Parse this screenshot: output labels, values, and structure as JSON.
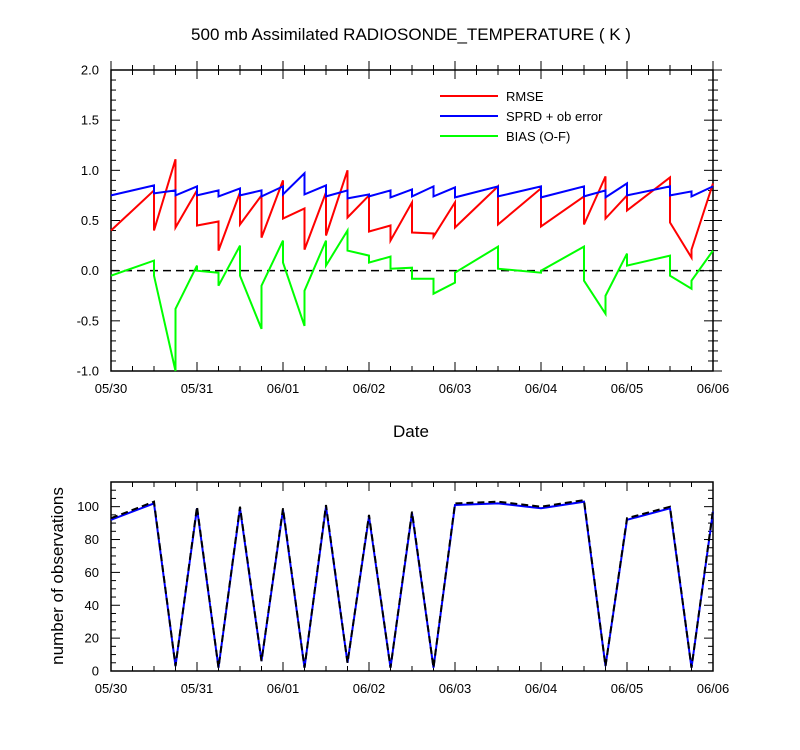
{
  "chart_data": [
    {
      "type": "line",
      "title": "500 mb Assimilated RADIOSONDE_TEMPERATURE ( K )",
      "xlabel": "Date",
      "ylabel": "",
      "x_tick_labels": [
        "05/30",
        "05/31",
        "06/01",
        "06/02",
        "06/03",
        "06/04",
        "06/05",
        "06/06"
      ],
      "xlim": [
        0,
        7
      ],
      "ylim": [
        -1.0,
        2.0
      ],
      "y_tick_labels": [
        "-1.0",
        "-0.5",
        "0.0",
        "0.5",
        "1.0",
        "1.5",
        "2.0"
      ],
      "legend_position": "top-right",
      "reference_line": {
        "y": 0,
        "style": "dashed",
        "color": "#000000"
      },
      "series": [
        {
          "name": "RMSE",
          "color": "#ff0000",
          "x": [
            0,
            0.5,
            0.5,
            0.75,
            0.75,
            1.0,
            1.0,
            1.25,
            1.25,
            1.5,
            1.5,
            1.75,
            1.75,
            2.0,
            2.0,
            2.25,
            2.25,
            2.5,
            2.5,
            2.75,
            2.75,
            3.0,
            3.0,
            3.25,
            3.25,
            3.5,
            3.5,
            3.75,
            3.75,
            4.0,
            4.0,
            4.5,
            4.5,
            5.0,
            5.0,
            5.5,
            5.5,
            5.75,
            5.75,
            6.0,
            6.0,
            6.5,
            6.5,
            6.75,
            6.75,
            7.0
          ],
          "y": [
            0.4,
            0.8,
            0.4,
            1.11,
            0.43,
            0.8,
            0.45,
            0.49,
            0.2,
            0.78,
            0.46,
            0.75,
            0.33,
            0.9,
            0.52,
            0.62,
            0.21,
            0.78,
            0.35,
            1.0,
            0.53,
            0.75,
            0.39,
            0.45,
            0.3,
            0.68,
            0.38,
            0.37,
            0.34,
            0.68,
            0.43,
            0.84,
            0.46,
            0.82,
            0.44,
            0.74,
            0.46,
            0.94,
            0.52,
            0.75,
            0.6,
            0.93,
            0.48,
            0.13,
            0.21,
            0.87
          ]
        },
        {
          "name": "SPRD + ob error",
          "color": "#0000ff",
          "x": [
            0,
            0.5,
            0.5,
            0.75,
            0.75,
            1.0,
            1.0,
            1.25,
            1.25,
            1.5,
            1.5,
            1.75,
            1.75,
            2.0,
            2.0,
            2.25,
            2.25,
            2.5,
            2.5,
            2.75,
            2.75,
            3.0,
            3.0,
            3.25,
            3.25,
            3.5,
            3.5,
            3.75,
            3.75,
            4.0,
            4.0,
            4.5,
            4.5,
            5.0,
            5.0,
            5.5,
            5.5,
            5.75,
            5.75,
            6.0,
            6.0,
            6.5,
            6.5,
            6.75,
            6.75,
            7.0
          ],
          "y": [
            0.75,
            0.85,
            0.77,
            0.8,
            0.75,
            0.84,
            0.75,
            0.8,
            0.74,
            0.82,
            0.75,
            0.8,
            0.74,
            0.84,
            0.76,
            0.97,
            0.76,
            0.85,
            0.74,
            0.8,
            0.72,
            0.76,
            0.74,
            0.8,
            0.73,
            0.81,
            0.74,
            0.84,
            0.74,
            0.83,
            0.73,
            0.84,
            0.74,
            0.84,
            0.73,
            0.84,
            0.74,
            0.8,
            0.73,
            0.87,
            0.75,
            0.84,
            0.75,
            0.79,
            0.74,
            0.84
          ]
        },
        {
          "name": "BIAS (O-F)",
          "color": "#00ff00",
          "x": [
            0,
            0.5,
            0.5,
            0.75,
            0.75,
            1.0,
            1.0,
            1.25,
            1.25,
            1.5,
            1.5,
            1.75,
            1.75,
            2.0,
            2.0,
            2.25,
            2.25,
            2.5,
            2.5,
            2.75,
            2.75,
            3.0,
            3.0,
            3.25,
            3.25,
            3.5,
            3.5,
            3.75,
            3.75,
            4.0,
            4.0,
            4.5,
            4.5,
            5.0,
            5.0,
            5.5,
            5.5,
            5.75,
            5.75,
            6.0,
            6.0,
            6.5,
            6.5,
            6.75,
            6.75,
            7.0
          ],
          "y": [
            -0.05,
            0.1,
            -0.05,
            -1.0,
            -0.38,
            0.05,
            0.0,
            -0.02,
            -0.15,
            0.25,
            -0.05,
            -0.58,
            -0.15,
            0.3,
            0.08,
            -0.55,
            -0.2,
            0.3,
            0.05,
            0.4,
            0.2,
            0.15,
            0.08,
            0.14,
            0.02,
            0.03,
            -0.08,
            -0.08,
            -0.23,
            -0.12,
            -0.02,
            0.24,
            0.02,
            -0.02,
            0.0,
            0.24,
            -0.1,
            -0.43,
            -0.25,
            0.17,
            0.05,
            0.15,
            -0.05,
            -0.18,
            -0.1,
            0.2
          ]
        }
      ]
    },
    {
      "type": "line",
      "title": "",
      "xlabel": "",
      "ylabel": "number of observations",
      "x_tick_labels": [
        "05/30",
        "05/31",
        "06/01",
        "06/02",
        "06/03",
        "06/04",
        "06/05",
        "06/06"
      ],
      "xlim": [
        0,
        7
      ],
      "ylim": [
        0,
        115
      ],
      "y_tick_labels": [
        "0",
        "20",
        "40",
        "60",
        "80",
        "100"
      ],
      "series": [
        {
          "color": "#0000ff",
          "style": "solid",
          "x": [
            0,
            0.5,
            0.75,
            1.0,
            1.25,
            1.5,
            1.75,
            2.0,
            2.25,
            2.5,
            2.75,
            3.0,
            3.25,
            3.5,
            3.75,
            4.0,
            4.5,
            5.0,
            5.5,
            5.75,
            6.0,
            6.5,
            6.75,
            7.0
          ],
          "y": [
            92,
            102,
            3,
            99,
            2,
            99,
            6,
            98,
            2,
            100,
            5,
            94,
            2,
            96,
            2,
            101,
            102,
            99,
            103,
            3,
            92,
            99,
            2,
            97
          ]
        },
        {
          "color": "#000000",
          "style": "dashed",
          "x": [
            0,
            0.5,
            0.75,
            1.0,
            1.25,
            1.5,
            1.75,
            2.0,
            2.25,
            2.5,
            2.75,
            3.0,
            3.25,
            3.5,
            3.75,
            4.0,
            4.5,
            5.0,
            5.5,
            5.75,
            6.0,
            6.5,
            6.75,
            7.0
          ],
          "y": [
            93,
            103,
            3,
            100,
            2,
            100,
            6,
            99,
            2,
            101,
            5,
            95,
            2,
            97,
            2,
            102,
            103,
            100,
            104,
            3,
            93,
            100,
            2,
            98
          ]
        }
      ]
    }
  ]
}
